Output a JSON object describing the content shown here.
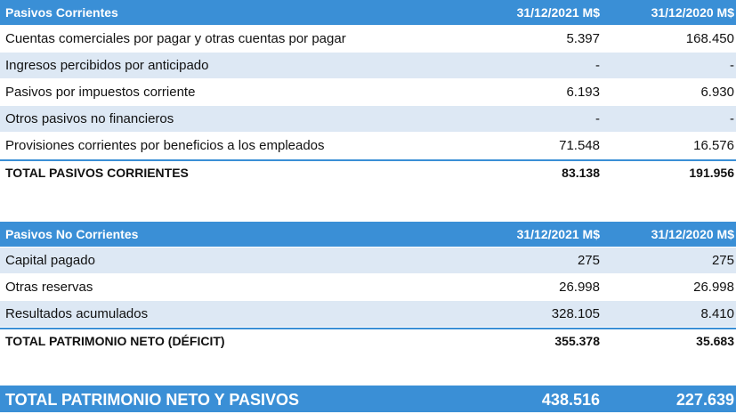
{
  "corrientes": {
    "header": {
      "label": "Pasivos Corrientes",
      "col1": "31/12/2021 M$",
      "col2": "31/12/2020 M$"
    },
    "rows": [
      {
        "label": "Cuentas comerciales por pagar y otras cuentas por pagar",
        "v1": "5.397",
        "v2": "168.450"
      },
      {
        "label": "Ingresos percibidos por anticipado",
        "v1": "-",
        "v2": "-"
      },
      {
        "label": "Pasivos por impuestos corriente",
        "v1": "6.193",
        "v2": "6.930"
      },
      {
        "label": "Otros pasivos no financieros",
        "v1": "-",
        "v2": "-"
      },
      {
        "label": "Provisiones corrientes por beneficios a los empleados",
        "v1": "71.548",
        "v2": "16.576"
      }
    ],
    "total": {
      "label": "TOTAL PASIVOS CORRIENTES",
      "v1": "83.138",
      "v2": "191.956"
    }
  },
  "no_corrientes": {
    "header": {
      "label": "Pasivos No Corrientes",
      "col1": "31/12/2021 M$",
      "col2": "31/12/2020 M$"
    },
    "rows": [
      {
        "label": "Capital pagado",
        "v1": "275",
        "v2": "275"
      },
      {
        "label": "Otras reservas",
        "v1": "26.998",
        "v2": "26.998"
      },
      {
        "label": "Resultados acumulados",
        "v1": "328.105",
        "v2": "8.410"
      }
    ],
    "total": {
      "label": "TOTAL PATRIMONIO NETO (DÉFICIT)",
      "v1": "355.378",
      "v2": "35.683"
    }
  },
  "grand_total": {
    "label": "TOTAL PATRIMONIO NETO Y PASIVOS",
    "v1": "438.516",
    "v2": "227.639"
  },
  "colors": {
    "header_blue": "#3a8fd6",
    "row_shade": "#dde8f4"
  }
}
